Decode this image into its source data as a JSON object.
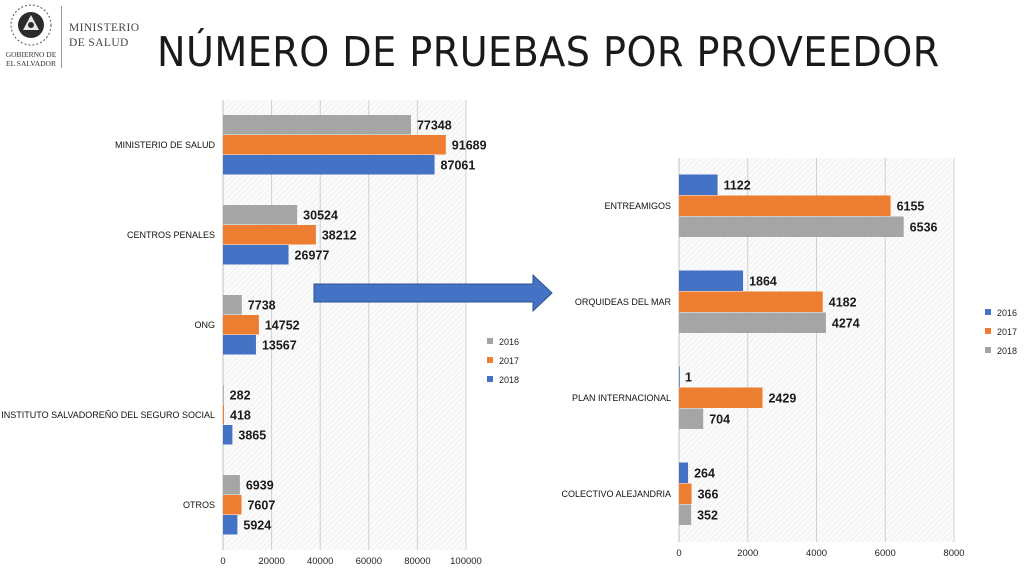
{
  "header": {
    "org_line1": "MINISTERIO",
    "org_line2": "DE SALUD",
    "gov_line1": "GOBIERNO DE",
    "gov_line2": "EL SALVADOR",
    "title": "NÚMERO DE PRUEBAS POR PROVEEDOR"
  },
  "colors": {
    "s2016": "#a5a5a5",
    "s2017": "#ed7d31",
    "s2018": "#4472c4",
    "arrow": "#4472c4"
  },
  "chart_data": [
    {
      "type": "bar",
      "orientation": "horizontal",
      "categories": [
        "MINISTERIO DE SALUD",
        "CENTROS PENALES",
        "ONG",
        "INSTITUTO SALVADOREÑO DEL SEGURO SOCIAL",
        "OTROS"
      ],
      "series": [
        {
          "name": "2016",
          "color": "#a5a5a5",
          "values": [
            77348,
            30524,
            7738,
            282,
            6939
          ]
        },
        {
          "name": "2017",
          "color": "#ed7d31",
          "values": [
            91689,
            38212,
            14752,
            418,
            7607
          ]
        },
        {
          "name": "2018",
          "color": "#4472c4",
          "values": [
            87061,
            26977,
            13567,
            3865,
            5924
          ]
        }
      ],
      "xlim": [
        0,
        100000
      ],
      "xticks": [
        "0",
        "20000",
        "40000",
        "60000",
        "80000",
        "100000"
      ],
      "grid": true,
      "legend": "right"
    },
    {
      "type": "bar",
      "orientation": "horizontal",
      "categories": [
        "ENTREAMIGOS",
        "ORQUIDEAS DEL MAR",
        "PLAN INTERNACIONAL",
        "COLECTIVO ALEJANDRIA"
      ],
      "series": [
        {
          "name": "2016",
          "color": "#4472c4",
          "values": [
            1122,
            1864,
            1,
            264
          ]
        },
        {
          "name": "2017",
          "color": "#ed7d31",
          "values": [
            6155,
            4182,
            2429,
            366
          ]
        },
        {
          "name": "2018",
          "color": "#a5a5a5",
          "values": [
            6536,
            4274,
            704,
            352
          ]
        }
      ],
      "xlim": [
        0,
        8000
      ],
      "xticks": [
        "0",
        "2000",
        "4000",
        "6000",
        "8000"
      ],
      "grid": true,
      "legend": "right"
    }
  ]
}
